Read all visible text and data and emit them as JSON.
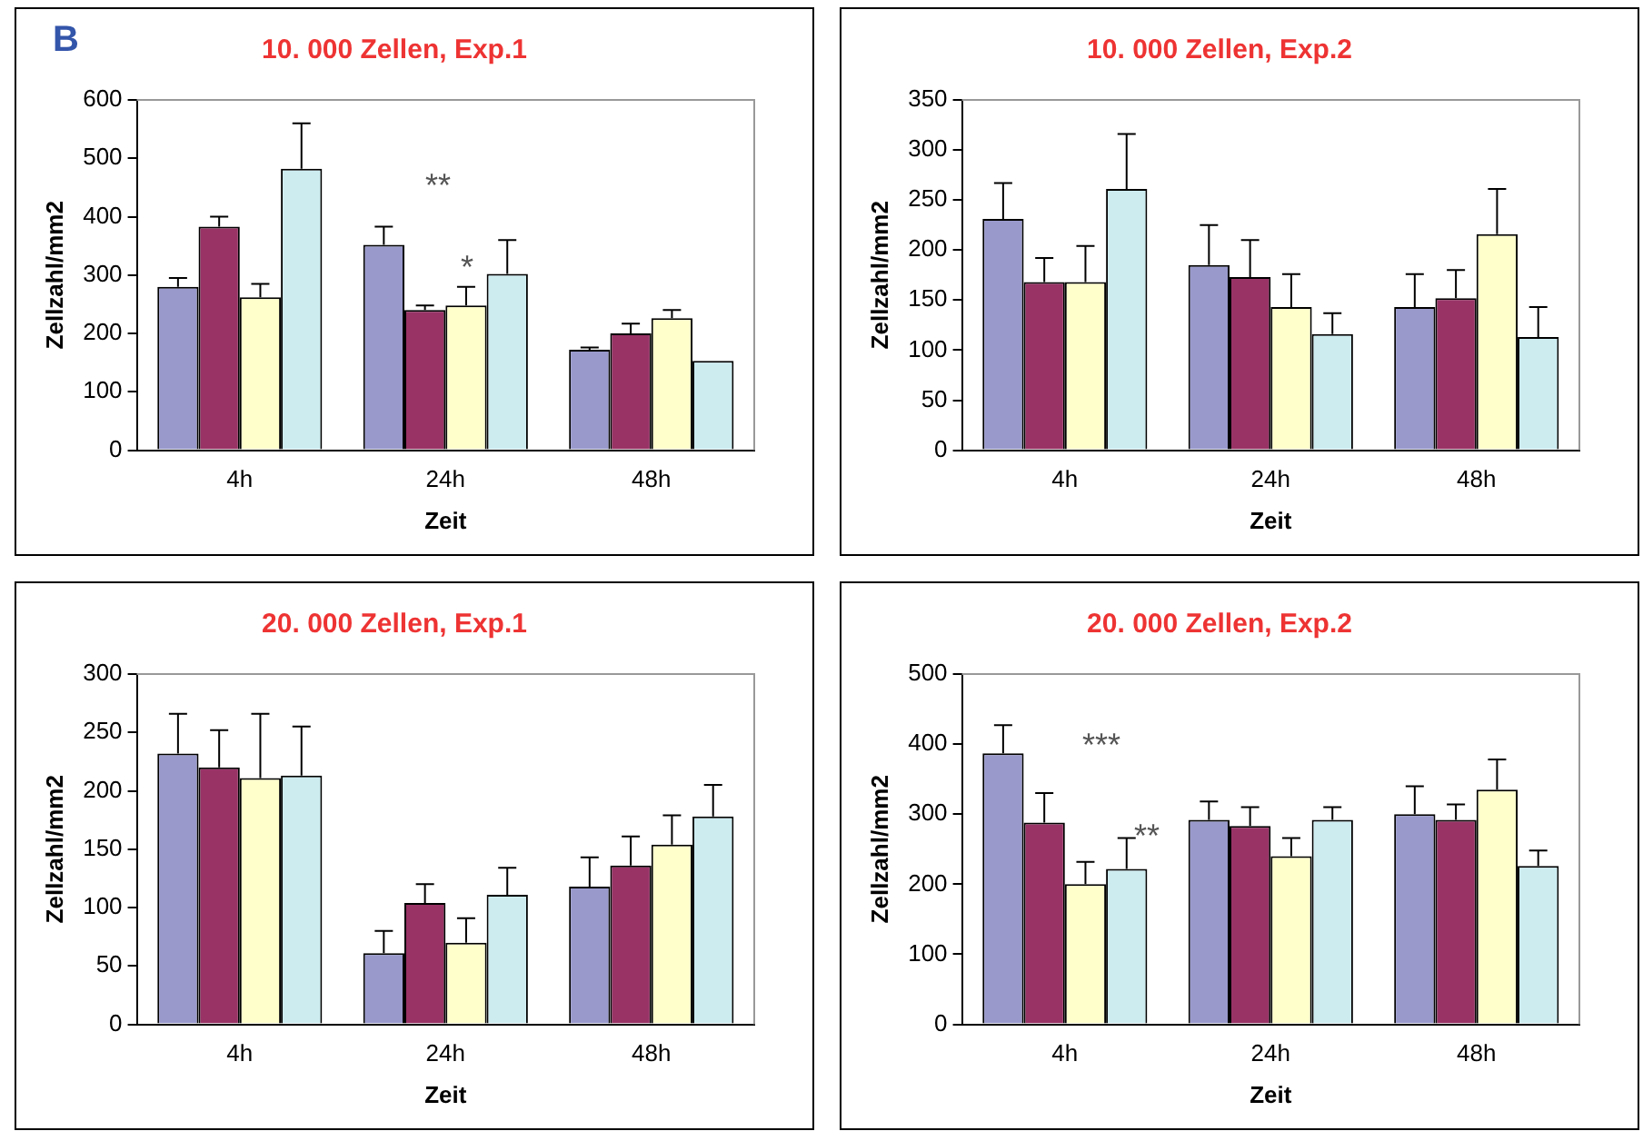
{
  "chart_data": [
    {
      "type": "bar",
      "title": "10. 000 Zellen, Exp.1",
      "xlabel": "Zeit",
      "ylabel": "Zellzahl/mm2",
      "categories": [
        "4h",
        "24h",
        "48h"
      ],
      "series": [
        {
          "color": "#9999cc",
          "values": [
            280,
            352,
            172
          ],
          "errors": [
            [
              280,
              295
            ],
            [
              352,
              383
            ],
            [
              172,
              176
            ]
          ]
        },
        {
          "color": "#993366",
          "values": [
            383,
            240,
            200
          ],
          "errors": [
            [
              383,
              400
            ],
            [
              240,
              248
            ],
            [
              200,
              217
            ]
          ]
        },
        {
          "color": "#ffffcc",
          "values": [
            262,
            248,
            226
          ],
          "errors": [
            [
              262,
              285
            ],
            [
              248,
              280
            ],
            [
              226,
              240
            ]
          ]
        },
        {
          "color": "#ccecf0",
          "values": [
            482,
            302,
            153
          ],
          "errors": [
            [
              482,
              560
            ],
            [
              302,
              360
            ],
            null
          ]
        }
      ],
      "ylim": [
        0,
        600
      ],
      "yticks": [
        0,
        100,
        200,
        300,
        400,
        500,
        600
      ],
      "grid": false,
      "legend": false,
      "annotations": [
        "B",
        "**",
        "*"
      ]
    },
    {
      "type": "bar",
      "title": "10. 000 Zellen, Exp.2",
      "xlabel": "Zeit",
      "ylabel": "Zellzahl/mm2",
      "categories": [
        "4h",
        "24h",
        "48h"
      ],
      "series": [
        {
          "color": "#9999cc",
          "values": [
            231,
            185,
            143
          ],
          "errors": [
            [
              231,
              267
            ],
            [
              185,
              225
            ],
            [
              143,
              176
            ]
          ]
        },
        {
          "color": "#993366",
          "values": [
            168,
            173,
            152
          ],
          "errors": [
            [
              168,
              192
            ],
            [
              173,
              210
            ],
            [
              152,
              180
            ]
          ]
        },
        {
          "color": "#ffffcc",
          "values": [
            168,
            143,
            216
          ],
          "errors": [
            [
              168,
              204
            ],
            [
              143,
              176
            ],
            [
              216,
              261
            ]
          ]
        },
        {
          "color": "#ccecf0",
          "values": [
            261,
            116,
            113
          ],
          "errors": [
            [
              261,
              316
            ],
            [
              116,
              137
            ],
            [
              113,
              143
            ]
          ]
        }
      ],
      "ylim": [
        0,
        350
      ],
      "yticks": [
        0,
        50,
        100,
        150,
        200,
        250,
        300,
        350
      ],
      "grid": false,
      "legend": false
    },
    {
      "type": "bar",
      "title": "20. 000 Zellen, Exp.1",
      "xlabel": "Zeit",
      "ylabel": "Zellzahl/mm2",
      "categories": [
        "4h",
        "24h",
        "48h"
      ],
      "series": [
        {
          "color": "#9999cc",
          "values": [
            232,
            61,
            118
          ],
          "errors": [
            [
              232,
              266
            ],
            [
              61,
              80
            ],
            [
              118,
              143
            ]
          ]
        },
        {
          "color": "#993366",
          "values": [
            220,
            104,
            136
          ],
          "errors": [
            [
              220,
              252
            ],
            [
              104,
              120
            ],
            [
              136,
              161
            ]
          ]
        },
        {
          "color": "#ffffcc",
          "values": [
            211,
            70,
            154
          ],
          "errors": [
            [
              211,
              266
            ],
            [
              70,
              91
            ],
            [
              154,
              179
            ]
          ]
        },
        {
          "color": "#ccecf0",
          "values": [
            213,
            111,
            178
          ],
          "errors": [
            [
              213,
              255
            ],
            [
              111,
              134
            ],
            [
              178,
              205
            ]
          ]
        }
      ],
      "ylim": [
        0,
        300
      ],
      "yticks": [
        0,
        50,
        100,
        150,
        200,
        250,
        300
      ],
      "grid": false,
      "legend": false
    },
    {
      "type": "bar",
      "title": "20. 000 Zellen, Exp.2",
      "xlabel": "Zeit",
      "ylabel": "Zellzahl/mm2",
      "categories": [
        "4h",
        "24h",
        "48h"
      ],
      "series": [
        {
          "color": "#9999cc",
          "values": [
            387,
            292,
            300
          ],
          "errors": [
            [
              387,
              427
            ],
            [
              292,
              318
            ],
            [
              300,
              340
            ]
          ]
        },
        {
          "color": "#993366",
          "values": [
            288,
            283,
            292
          ],
          "errors": [
            [
              288,
              330
            ],
            [
              283,
              310
            ],
            [
              292,
              314
            ]
          ]
        },
        {
          "color": "#ffffcc",
          "values": [
            200,
            240,
            335
          ],
          "errors": [
            [
              200,
              232
            ],
            [
              240,
              266
            ],
            [
              335,
              378
            ]
          ]
        },
        {
          "color": "#ccecf0",
          "values": [
            222,
            292,
            226
          ],
          "errors": [
            [
              222,
              266
            ],
            [
              292,
              310
            ],
            [
              226,
              248
            ]
          ]
        }
      ],
      "ylim": [
        0,
        500
      ],
      "yticks": [
        0,
        100,
        200,
        300,
        400,
        500
      ],
      "grid": false,
      "legend": false,
      "annotations": [
        "***",
        "**"
      ]
    }
  ]
}
